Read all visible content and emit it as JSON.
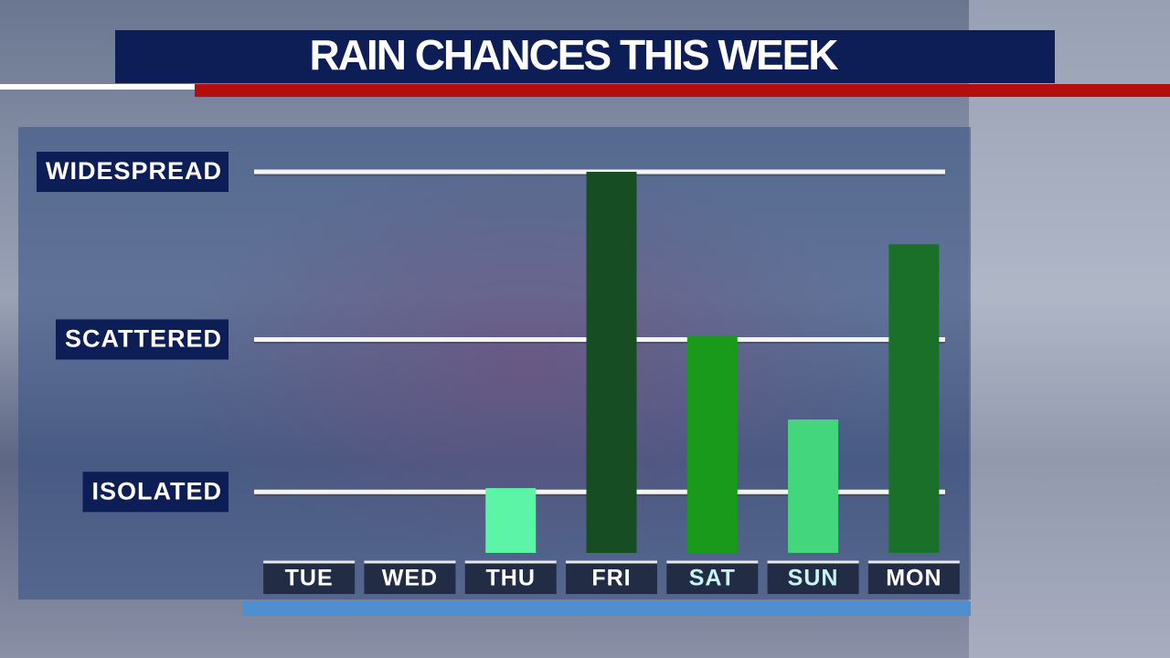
{
  "chart_data": {
    "type": "bar",
    "title": "RAIN CHANCES THIS WEEK",
    "categories": [
      "TUE",
      "WED",
      "THU",
      "FRI",
      "SAT",
      "SUN",
      "MON"
    ],
    "values": [
      0,
      0,
      17,
      100,
      57,
      35,
      81
    ],
    "colors": [
      "#5cf5a8",
      "#5cf5a8",
      "#5cf5a8",
      "#174d22",
      "#1a9a1a",
      "#44d67c",
      "#1a7028"
    ],
    "ylim": [
      0,
      100
    ],
    "yticks": [
      {
        "value": 16,
        "label": "ISOLATED"
      },
      {
        "value": 56,
        "label": "SCATTERED"
      },
      {
        "value": 100,
        "label": "WIDESPREAD"
      }
    ],
    "grid": true
  }
}
